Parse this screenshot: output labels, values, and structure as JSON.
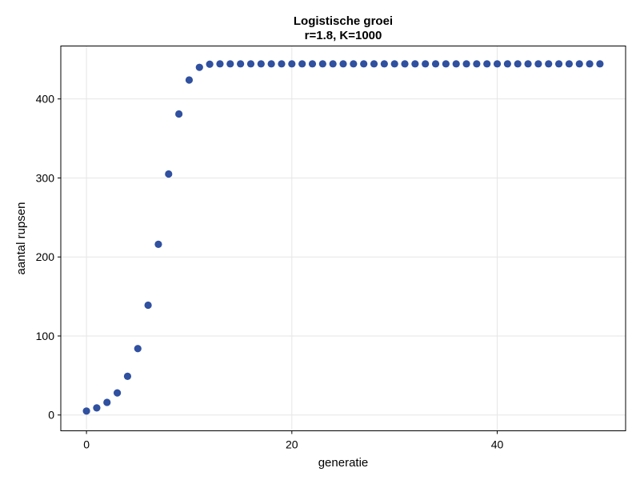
{
  "chart_data": {
    "type": "scatter",
    "title": "Logistische groei",
    "subtitle": "r=1.8, K=1000",
    "xlabel": "generatie",
    "ylabel": "aantal rupsen",
    "xlim": [
      -2.5,
      52.5
    ],
    "ylim": [
      -20,
      467
    ],
    "xticks": [
      0,
      20,
      40
    ],
    "yticks": [
      0,
      100,
      200,
      300,
      400
    ],
    "grid": true,
    "color": "#3050a0",
    "x": [
      0,
      1,
      2,
      3,
      4,
      5,
      6,
      7,
      8,
      9,
      10,
      11,
      12,
      13,
      14,
      15,
      16,
      17,
      18,
      19,
      20,
      21,
      22,
      23,
      24,
      25,
      26,
      27,
      28,
      29,
      30,
      31,
      32,
      33,
      34,
      35,
      36,
      37,
      38,
      39,
      40,
      41,
      42,
      43,
      44,
      45,
      46,
      47,
      48,
      49,
      50
    ],
    "y": [
      5,
      9,
      16,
      28,
      49,
      84,
      139,
      216,
      305,
      381,
      424,
      440,
      444,
      444.4,
      444.4,
      444.4,
      444.4,
      444.4,
      444.4,
      444.4,
      444.4,
      444.4,
      444.4,
      444.4,
      444.4,
      444.4,
      444.4,
      444.4,
      444.4,
      444.4,
      444.4,
      444.4,
      444.4,
      444.4,
      444.4,
      444.4,
      444.4,
      444.4,
      444.4,
      444.4,
      444.4,
      444.4,
      444.4,
      444.4,
      444.4,
      444.4,
      444.4,
      444.4,
      444.4,
      444.4,
      444.4
    ]
  }
}
